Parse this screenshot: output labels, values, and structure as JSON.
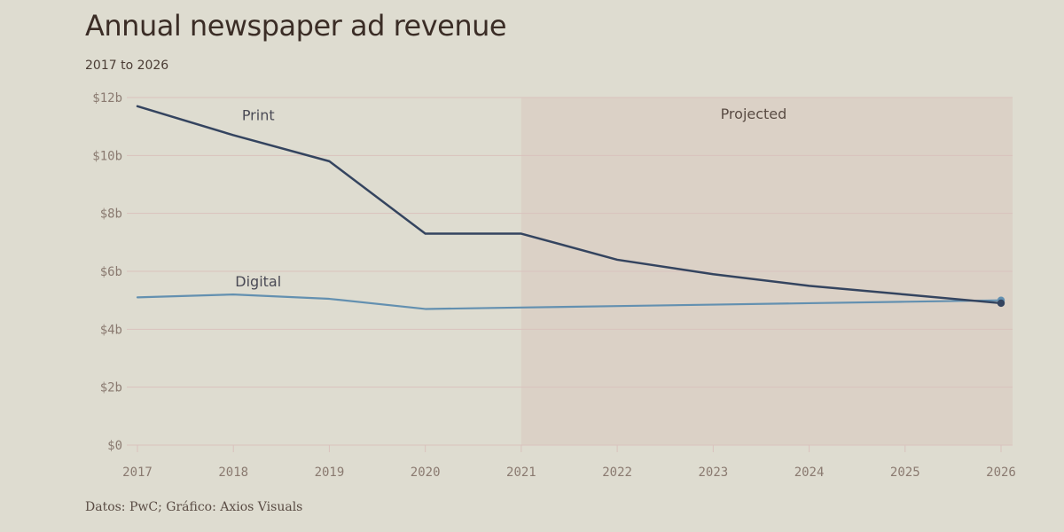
{
  "header": {
    "title": "Annual newspaper ad revenue",
    "subtitle": "2017 to 2026"
  },
  "footer": {
    "source": "Datos: PwC; Gráfico: Axios Visuals"
  },
  "colors": {
    "background": "#dedcd0",
    "projected_band": "#dbd1c6",
    "gridline": "#d9c2bd",
    "print": "#34445f",
    "digital": "#6390b0"
  },
  "chart_data": {
    "type": "line",
    "title": "Annual newspaper ad revenue",
    "subtitle": "2017 to 2026",
    "x": [
      2017,
      2018,
      2019,
      2020,
      2021,
      2022,
      2023,
      2024,
      2025,
      2026
    ],
    "x_tick_labels": [
      "2017",
      "2018",
      "2019",
      "2020",
      "2021",
      "2022",
      "2023",
      "2024",
      "2025",
      "2026"
    ],
    "ylim": [
      0,
      12
    ],
    "y_ticks": [
      0,
      2,
      4,
      6,
      8,
      10,
      12
    ],
    "y_tick_labels": [
      "$0",
      "$2b",
      "$4b",
      "$6b",
      "$8b",
      "$10b",
      "$12b"
    ],
    "grid": true,
    "series": [
      {
        "name": "Print",
        "color": "#34445f",
        "values": [
          11.7,
          10.7,
          9.8,
          7.3,
          7.3,
          6.4,
          5.9,
          5.5,
          5.2,
          4.9
        ]
      },
      {
        "name": "Digital",
        "color": "#6390b0",
        "values": [
          5.1,
          5.2,
          5.05,
          4.7,
          4.75,
          4.8,
          4.85,
          4.9,
          4.95,
          5.0
        ]
      }
    ],
    "annotations": [
      {
        "label": "Projected",
        "x_start": 2021,
        "x_end": 2026
      }
    ],
    "source": "Datos: PwC; Gráfico: Axios Visuals"
  }
}
